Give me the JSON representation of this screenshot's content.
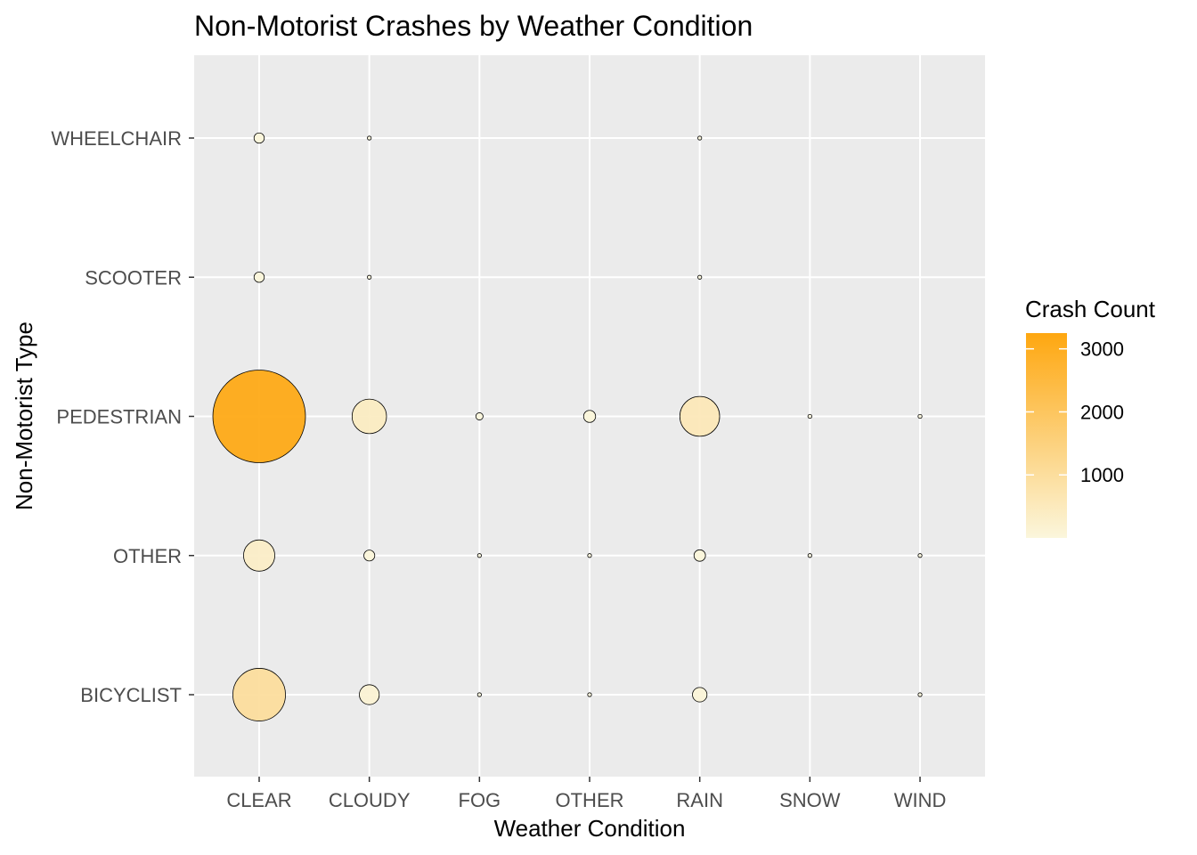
{
  "chart_data": {
    "type": "scatter",
    "title": "Non-Motorist Crashes by Weather Condition",
    "xlabel": "Weather Condition",
    "ylabel": "Non-Motorist Type",
    "categories_x": [
      "CLEAR",
      "CLOUDY",
      "FOG",
      "OTHER",
      "RAIN",
      "SNOW",
      "WIND"
    ],
    "categories_y": [
      "BICYCLIST",
      "OTHER",
      "PEDESTRIAN",
      "SCOOTER",
      "WHEELCHAIR"
    ],
    "points": [
      {
        "x": "CLEAR",
        "y": "WHEELCHAIR",
        "count": 40
      },
      {
        "x": "CLOUDY",
        "y": "WHEELCHAIR",
        "count": 4
      },
      {
        "x": "RAIN",
        "y": "WHEELCHAIR",
        "count": 4
      },
      {
        "x": "CLEAR",
        "y": "SCOOTER",
        "count": 40
      },
      {
        "x": "CLOUDY",
        "y": "SCOOTER",
        "count": 4
      },
      {
        "x": "RAIN",
        "y": "SCOOTER",
        "count": 4
      },
      {
        "x": "CLEAR",
        "y": "PEDESTRIAN",
        "count": 3250
      },
      {
        "x": "CLOUDY",
        "y": "PEDESTRIAN",
        "count": 450
      },
      {
        "x": "FOG",
        "y": "PEDESTRIAN",
        "count": 20
      },
      {
        "x": "OTHER",
        "y": "PEDESTRIAN",
        "count": 55
      },
      {
        "x": "RAIN",
        "y": "PEDESTRIAN",
        "count": 600
      },
      {
        "x": "SNOW",
        "y": "PEDESTRIAN",
        "count": 6
      },
      {
        "x": "WIND",
        "y": "PEDESTRIAN",
        "count": 6
      },
      {
        "x": "CLEAR",
        "y": "OTHER",
        "count": 370
      },
      {
        "x": "CLOUDY",
        "y": "OTHER",
        "count": 45
      },
      {
        "x": "FOG",
        "y": "OTHER",
        "count": 3
      },
      {
        "x": "OTHER",
        "y": "OTHER",
        "count": 3
      },
      {
        "x": "RAIN",
        "y": "OTHER",
        "count": 50
      },
      {
        "x": "SNOW",
        "y": "OTHER",
        "count": 3
      },
      {
        "x": "WIND",
        "y": "OTHER",
        "count": 3
      },
      {
        "x": "CLEAR",
        "y": "BICYCLIST",
        "count": 1050
      },
      {
        "x": "CLOUDY",
        "y": "BICYCLIST",
        "count": 150
      },
      {
        "x": "FOG",
        "y": "BICYCLIST",
        "count": 3
      },
      {
        "x": "OTHER",
        "y": "BICYCLIST",
        "count": 3
      },
      {
        "x": "RAIN",
        "y": "BICYCLIST",
        "count": 80
      },
      {
        "x": "WIND",
        "y": "BICYCLIST",
        "count": 3
      }
    ],
    "legend": {
      "title": "Crash Count",
      "ticks": [
        1000,
        2000,
        3000
      ],
      "range": [
        0,
        3250
      ],
      "position": "right"
    },
    "colors": {
      "low": "#fbf6dc",
      "high": "#fea710",
      "panel": "#ebebeb",
      "grid": "#ffffff"
    },
    "grid": true
  }
}
